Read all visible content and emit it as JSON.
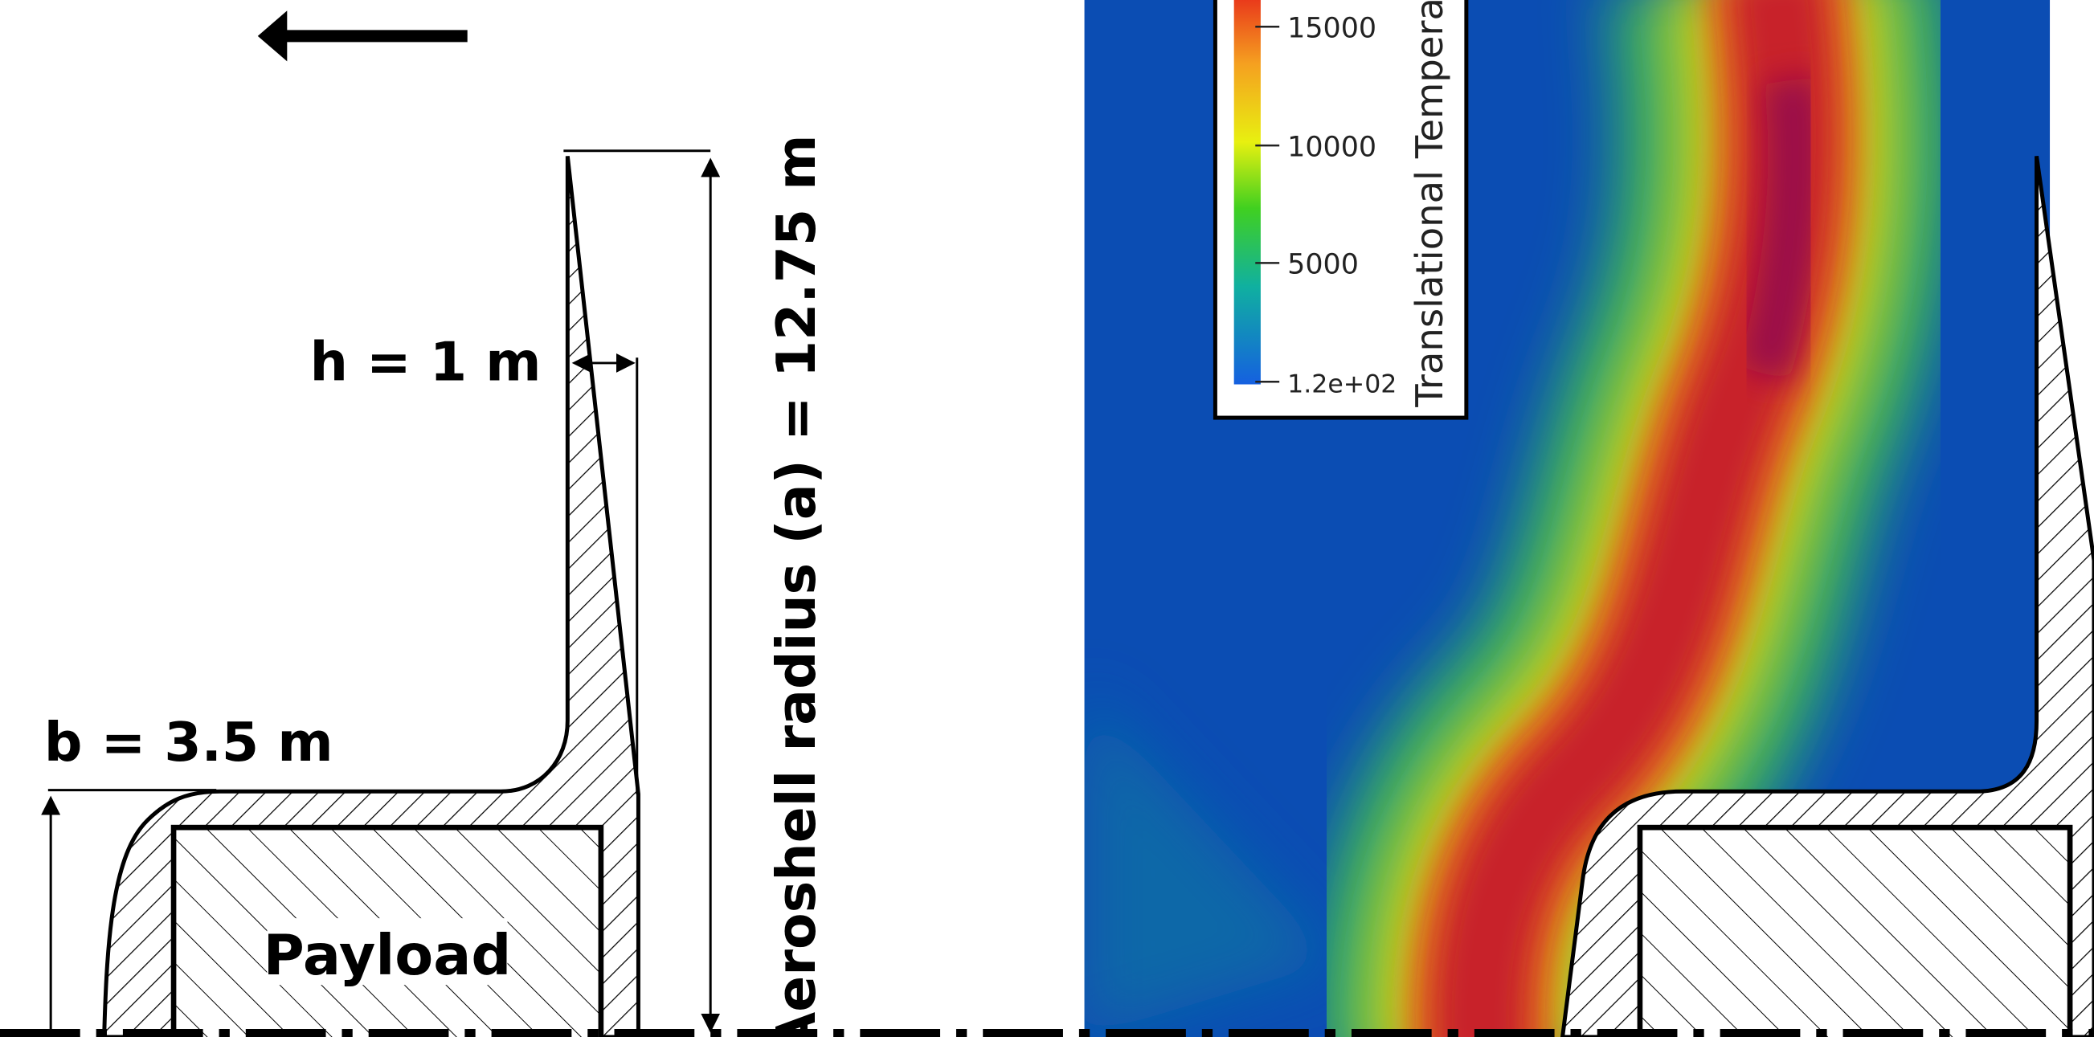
{
  "dimensions": {
    "h": "h = 1 m",
    "b": "b = 3.5 m",
    "radius": "Aeroshell radius (a) = 12.75 m"
  },
  "payload": "Payload",
  "colorbar": {
    "title": "Translational Temperat",
    "ticks": [
      "15000",
      "10000",
      "5000",
      "1.2e+02"
    ]
  }
}
